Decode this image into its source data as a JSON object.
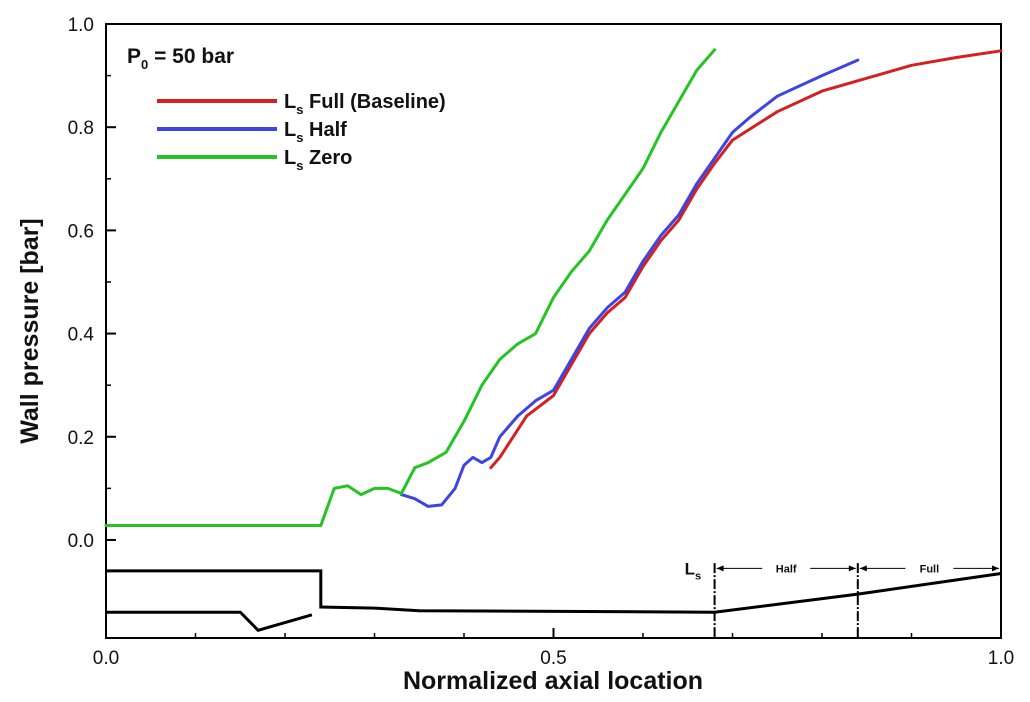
{
  "chart_data": {
    "type": "line",
    "xlabel": "Normalized axial location",
    "ylabel": "Wall pressure [bar]",
    "xlim": [
      0.0,
      1.0
    ],
    "ylim": [
      -0.19,
      1.0
    ],
    "x_ticks": [
      0.0,
      0.5,
      1.0
    ],
    "x_tick_labels": [
      "0.0",
      "0.5",
      "1.0"
    ],
    "y_ticks": [
      0.0,
      0.2,
      0.4,
      0.6,
      0.8,
      1.0
    ],
    "y_tick_labels": [
      "0.0",
      "0.2",
      "0.4",
      "0.6",
      "0.8",
      "1.0"
    ],
    "grid": false,
    "condition": {
      "main": "P",
      "sub": "0",
      "rest": " = 50 bar"
    },
    "legend_position": "top-left",
    "series": [
      {
        "name": "Ls Full (Baseline)",
        "label_main": "L",
        "label_sub": "s",
        "label_rest": " Full (Baseline)",
        "color": "#d42020",
        "x": [
          0.43,
          0.44,
          0.455,
          0.47,
          0.485,
          0.5,
          0.52,
          0.54,
          0.56,
          0.58,
          0.6,
          0.62,
          0.64,
          0.66,
          0.68,
          0.7,
          0.75,
          0.8,
          0.85,
          0.9,
          0.95,
          1.0
        ],
        "y": [
          0.14,
          0.16,
          0.2,
          0.24,
          0.26,
          0.28,
          0.34,
          0.4,
          0.44,
          0.47,
          0.53,
          0.58,
          0.62,
          0.68,
          0.73,
          0.775,
          0.83,
          0.87,
          0.895,
          0.92,
          0.935,
          0.948
        ]
      },
      {
        "name": "Ls Half",
        "label_main": "L",
        "label_sub": "s",
        "label_rest": " Half",
        "color": "#3d44e6",
        "x": [
          0.33,
          0.345,
          0.36,
          0.375,
          0.39,
          0.4,
          0.41,
          0.42,
          0.43,
          0.44,
          0.46,
          0.48,
          0.5,
          0.52,
          0.54,
          0.56,
          0.58,
          0.6,
          0.62,
          0.64,
          0.66,
          0.68,
          0.7,
          0.72,
          0.75,
          0.8,
          0.84
        ],
        "y": [
          0.088,
          0.08,
          0.065,
          0.068,
          0.1,
          0.145,
          0.16,
          0.15,
          0.16,
          0.2,
          0.24,
          0.27,
          0.29,
          0.35,
          0.41,
          0.45,
          0.48,
          0.54,
          0.59,
          0.63,
          0.69,
          0.74,
          0.79,
          0.82,
          0.86,
          0.9,
          0.93
        ]
      },
      {
        "name": "Ls Zero",
        "label_main": "L",
        "label_sub": "s",
        "label_rest": " Zero",
        "color": "#25c425",
        "x": [
          0.0,
          0.24,
          0.255,
          0.27,
          0.285,
          0.3,
          0.315,
          0.33,
          0.345,
          0.36,
          0.38,
          0.4,
          0.42,
          0.44,
          0.46,
          0.48,
          0.5,
          0.52,
          0.54,
          0.56,
          0.58,
          0.6,
          0.62,
          0.64,
          0.66,
          0.68
        ],
        "y": [
          0.028,
          0.028,
          0.1,
          0.105,
          0.088,
          0.1,
          0.1,
          0.09,
          0.14,
          0.15,
          0.17,
          0.23,
          0.3,
          0.35,
          0.38,
          0.4,
          0.47,
          0.52,
          0.56,
          0.62,
          0.67,
          0.72,
          0.79,
          0.85,
          0.91,
          0.95
        ]
      }
    ],
    "geometry_profile": {
      "color": "#000000",
      "upper": {
        "x": [
          0.0,
          0.24,
          0.24,
          0.3,
          0.35,
          0.68,
          0.84,
          1.0
        ],
        "y": [
          -0.06,
          -0.06,
          -0.13,
          -0.132,
          -0.137,
          -0.14,
          -0.105,
          -0.065
        ]
      },
      "lower": {
        "x": [
          0.0,
          0.15,
          0.17,
          0.23
        ],
        "y": [
          -0.14,
          -0.14,
          -0.175,
          -0.145
        ]
      },
      "markers": [
        {
          "x": 0.68,
          "y_top": -0.045,
          "y_bottom": -0.19
        },
        {
          "x": 0.84,
          "y_top": -0.045,
          "y_bottom": -0.19
        }
      ],
      "ls_label": {
        "main": "L",
        "sub": "s",
        "x": 0.68
      },
      "annotations": [
        {
          "label": "Half",
          "x_start": 0.68,
          "x_end": 0.84,
          "y": -0.055
        },
        {
          "label": "Full",
          "x_start": 0.84,
          "x_end": 1.0,
          "y": -0.055
        }
      ]
    }
  }
}
